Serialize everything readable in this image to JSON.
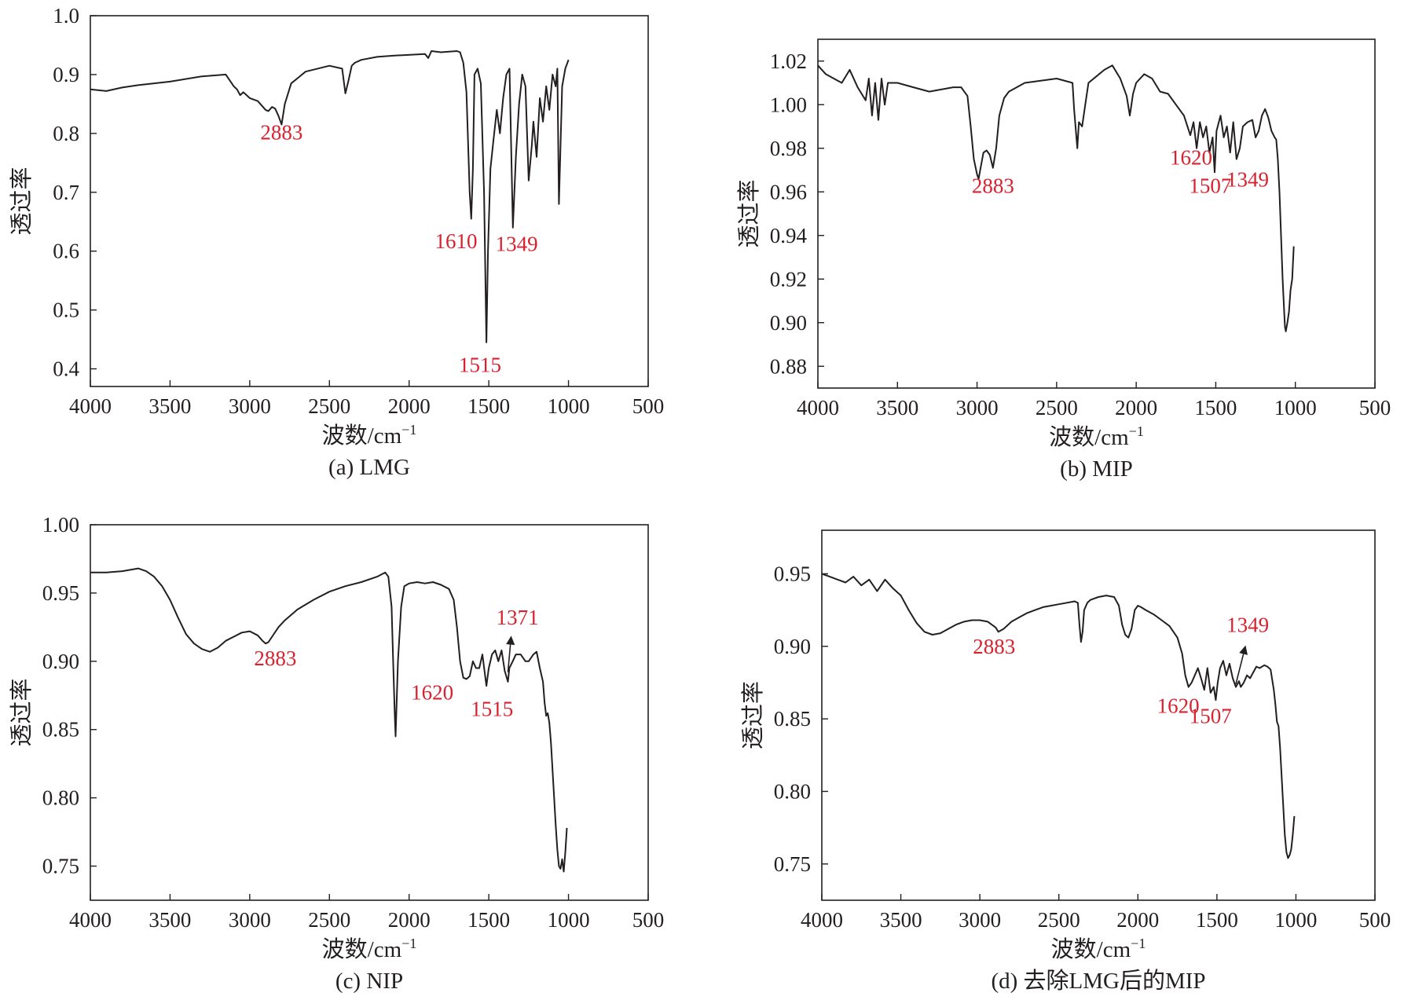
{
  "colors": {
    "ink": "#231f20",
    "annotation": "#d8222f",
    "background": "#ffffff"
  },
  "chart_data": [
    {
      "type": "line",
      "caption": "(a) LMG",
      "xlabel": "波数/cm",
      "xlabel_sup": "−1",
      "ylabel": "透过率",
      "xlim": [
        4000,
        500
      ],
      "ylim": [
        0.37,
        1.0
      ],
      "xticks": [
        4000,
        3500,
        3000,
        2500,
        2000,
        1500,
        1000,
        500
      ],
      "xtick_labels": [
        "4000",
        "3500",
        "3000",
        "2500",
        "2000",
        "1500",
        "1000",
        "500"
      ],
      "yticks": [
        0.4,
        0.5,
        0.6,
        0.7,
        0.8,
        0.9,
        1.0
      ],
      "ytick_labels": [
        "0.4",
        "0.5",
        "0.6",
        "0.7",
        "0.8",
        "0.9",
        "1.0"
      ],
      "series": [
        {
          "name": "LMG",
          "x": [
            4000,
            3900,
            3800,
            3700,
            3500,
            3300,
            3150,
            3100,
            3080,
            3060,
            3040,
            3000,
            2950,
            2900,
            2883,
            2860,
            2840,
            2820,
            2800,
            2780,
            2740,
            2650,
            2500,
            2420,
            2400,
            2380,
            2360,
            2340,
            2300,
            2200,
            2100,
            1900,
            1880,
            1860,
            1800,
            1700,
            1680,
            1660,
            1640,
            1620,
            1610,
            1600,
            1590,
            1570,
            1550,
            1530,
            1515,
            1505,
            1490,
            1470,
            1450,
            1430,
            1410,
            1390,
            1370,
            1349,
            1330,
            1310,
            1290,
            1270,
            1250,
            1230,
            1220,
            1200,
            1180,
            1160,
            1140,
            1120,
            1100,
            1080,
            1070,
            1060,
            1040,
            1020,
            1000
          ],
          "y": [
            0.875,
            0.872,
            0.878,
            0.882,
            0.888,
            0.897,
            0.9,
            0.88,
            0.875,
            0.865,
            0.87,
            0.86,
            0.855,
            0.84,
            0.838,
            0.845,
            0.842,
            0.83,
            0.815,
            0.85,
            0.885,
            0.905,
            0.915,
            0.91,
            0.868,
            0.89,
            0.915,
            0.92,
            0.925,
            0.93,
            0.932,
            0.935,
            0.928,
            0.94,
            0.938,
            0.94,
            0.938,
            0.92,
            0.87,
            0.7,
            0.655,
            0.74,
            0.9,
            0.91,
            0.885,
            0.7,
            0.445,
            0.6,
            0.74,
            0.79,
            0.84,
            0.8,
            0.86,
            0.9,
            0.91,
            0.64,
            0.76,
            0.85,
            0.9,
            0.88,
            0.72,
            0.78,
            0.82,
            0.76,
            0.86,
            0.82,
            0.88,
            0.84,
            0.9,
            0.88,
            0.91,
            0.68,
            0.88,
            0.91,
            0.925
          ]
        }
      ],
      "annotations": [
        {
          "label": "2883",
          "x": 2800,
          "y": 0.79
        },
        {
          "label": "1610",
          "x": 1705,
          "y": 0.605
        },
        {
          "label": "1349",
          "x": 1325,
          "y": 0.6
        },
        {
          "label": "1515",
          "x": 1555,
          "y": 0.395
        }
      ]
    },
    {
      "type": "line",
      "caption": "(b) MIP",
      "xlabel": "波数/cm",
      "xlabel_sup": "−1",
      "ylabel": "透过率",
      "xlim": [
        4000,
        500
      ],
      "ylim": [
        0.87,
        1.03
      ],
      "xticks": [
        4000,
        3500,
        3000,
        2500,
        2000,
        1500,
        1000,
        500
      ],
      "xtick_labels": [
        "4000",
        "3500",
        "3000",
        "2500",
        "2000",
        "1500",
        "1000",
        "500"
      ],
      "yticks": [
        0.88,
        0.9,
        0.92,
        0.94,
        0.96,
        0.98,
        1.0,
        1.02
      ],
      "ytick_labels": [
        "0.88",
        "0.90",
        "0.92",
        "0.94",
        "0.96",
        "0.98",
        "1.00",
        "1.02"
      ],
      "series": [
        {
          "name": "MIP",
          "x": [
            4000,
            3950,
            3900,
            3850,
            3800,
            3750,
            3700,
            3680,
            3660,
            3640,
            3620,
            3600,
            3580,
            3560,
            3500,
            3400,
            3300,
            3150,
            3100,
            3060,
            3040,
            3020,
            3000,
            2990,
            2980,
            2960,
            2940,
            2920,
            2900,
            2880,
            2860,
            2830,
            2800,
            2700,
            2500,
            2400,
            2390,
            2370,
            2360,
            2340,
            2320,
            2300,
            2250,
            2200,
            2150,
            2100,
            2060,
            2040,
            2030,
            2020,
            2000,
            1950,
            1900,
            1850,
            1800,
            1750,
            1700,
            1660,
            1640,
            1620,
            1600,
            1580,
            1560,
            1540,
            1520,
            1507,
            1495,
            1470,
            1450,
            1430,
            1410,
            1390,
            1370,
            1349,
            1330,
            1300,
            1270,
            1250,
            1230,
            1210,
            1190,
            1170,
            1150,
            1130,
            1120,
            1110,
            1100,
            1090,
            1080,
            1070,
            1065,
            1060,
            1050,
            1040,
            1030,
            1020,
            1010
          ],
          "y": [
            1.018,
            1.014,
            1.012,
            1.01,
            1.016,
            1.008,
            1.002,
            1.012,
            0.995,
            1.01,
            0.993,
            1.012,
            1.0,
            1.01,
            1.01,
            1.008,
            1.006,
            1.008,
            1.008,
            1.004,
            0.99,
            0.975,
            0.968,
            0.966,
            0.97,
            0.978,
            0.979,
            0.977,
            0.971,
            0.98,
            0.995,
            1.003,
            1.006,
            1.01,
            1.012,
            1.01,
            0.998,
            0.98,
            0.992,
            0.99,
            1.0,
            1.01,
            1.013,
            1.016,
            1.018,
            1.012,
            1.004,
            0.995,
            1.0,
            1.005,
            1.01,
            1.014,
            1.012,
            1.006,
            1.005,
            1.0,
            0.995,
            0.986,
            0.992,
            0.98,
            0.992,
            0.985,
            0.99,
            0.978,
            0.985,
            0.969,
            0.988,
            0.995,
            0.985,
            0.99,
            0.978,
            0.992,
            0.975,
            0.98,
            0.99,
            0.992,
            0.993,
            0.985,
            0.988,
            0.995,
            0.998,
            0.994,
            0.988,
            0.985,
            0.984,
            0.975,
            0.96,
            0.94,
            0.92,
            0.905,
            0.898,
            0.896,
            0.9,
            0.905,
            0.915,
            0.92,
            0.935
          ]
        }
      ],
      "annotations": [
        {
          "label": "2883",
          "x": 2900,
          "y": 0.9595
        },
        {
          "label": "1620",
          "x": 1655,
          "y": 0.9725
        },
        {
          "label": "1507",
          "x": 1535,
          "y": 0.9595
        },
        {
          "label": "1349",
          "x": 1300,
          "y": 0.9625
        }
      ]
    },
    {
      "type": "line",
      "caption": "(c) NIP",
      "xlabel": "波数/cm",
      "xlabel_sup": "−1",
      "ylabel": "透过率",
      "xlim": [
        4000,
        500
      ],
      "ylim": [
        0.725,
        1.0
      ],
      "xticks": [
        4000,
        3500,
        3000,
        2500,
        2000,
        1500,
        1000,
        500
      ],
      "xtick_labels": [
        "4000",
        "3500",
        "3000",
        "2500",
        "2000",
        "1500",
        "1000",
        "500"
      ],
      "yticks": [
        0.75,
        0.8,
        0.85,
        0.9,
        0.95,
        1.0
      ],
      "ytick_labels": [
        "0.75",
        "0.80",
        "0.85",
        "0.90",
        "0.95",
        "1.00"
      ],
      "series": [
        {
          "name": "NIP",
          "x": [
            4000,
            3900,
            3800,
            3700,
            3650,
            3600,
            3550,
            3500,
            3450,
            3400,
            3350,
            3300,
            3250,
            3200,
            3150,
            3100,
            3050,
            3000,
            2950,
            2920,
            2900,
            2883,
            2860,
            2820,
            2780,
            2700,
            2600,
            2500,
            2400,
            2300,
            2200,
            2150,
            2130,
            2110,
            2100,
            2090,
            2085,
            2070,
            2050,
            2030,
            2000,
            1950,
            1900,
            1850,
            1800,
            1750,
            1720,
            1700,
            1680,
            1660,
            1640,
            1620,
            1600,
            1580,
            1560,
            1540,
            1515,
            1500,
            1480,
            1460,
            1440,
            1420,
            1400,
            1380,
            1371,
            1350,
            1330,
            1300,
            1270,
            1250,
            1220,
            1200,
            1180,
            1160,
            1150,
            1140,
            1130,
            1120,
            1110,
            1100,
            1090,
            1080,
            1070,
            1060,
            1050,
            1040,
            1030,
            1020,
            1010
          ],
          "y": [
            0.965,
            0.965,
            0.966,
            0.968,
            0.966,
            0.962,
            0.955,
            0.945,
            0.932,
            0.92,
            0.913,
            0.909,
            0.907,
            0.91,
            0.915,
            0.918,
            0.921,
            0.922,
            0.919,
            0.915,
            0.913,
            0.914,
            0.918,
            0.925,
            0.93,
            0.938,
            0.945,
            0.951,
            0.955,
            0.958,
            0.962,
            0.965,
            0.962,
            0.94,
            0.9,
            0.86,
            0.845,
            0.9,
            0.94,
            0.955,
            0.957,
            0.958,
            0.957,
            0.958,
            0.956,
            0.953,
            0.945,
            0.925,
            0.9,
            0.888,
            0.887,
            0.889,
            0.9,
            0.895,
            0.895,
            0.905,
            0.882,
            0.895,
            0.905,
            0.908,
            0.9,
            0.908,
            0.893,
            0.885,
            0.895,
            0.9,
            0.905,
            0.905,
            0.9,
            0.9,
            0.905,
            0.907,
            0.895,
            0.885,
            0.87,
            0.86,
            0.862,
            0.855,
            0.84,
            0.82,
            0.8,
            0.78,
            0.762,
            0.75,
            0.748,
            0.755,
            0.746,
            0.76,
            0.778
          ]
        }
      ],
      "annotations": [
        {
          "label": "2883",
          "x": 2840,
          "y": 0.897
        },
        {
          "label": "1620",
          "x": 1855,
          "y": 0.872
        },
        {
          "label": "1515",
          "x": 1480,
          "y": 0.86
        },
        {
          "label": "1371",
          "x": 1320,
          "y": 0.927
        }
      ],
      "arrow": {
        "from": [
          1380,
          0.892
        ],
        "to": [
          1360,
          0.918
        ]
      }
    },
    {
      "type": "line",
      "caption": "(d) 去除LMG后的MIP",
      "xlabel": "波数/cm",
      "xlabel_sup": "−1",
      "ylabel": "透过率",
      "xlim": [
        4000,
        500
      ],
      "ylim": [
        0.725,
        0.98
      ],
      "xticks": [
        4000,
        3500,
        3000,
        2500,
        2000,
        1500,
        1000,
        500
      ],
      "xtick_labels": [
        "4000",
        "3500",
        "3000",
        "2500",
        "2000",
        "1500",
        "1000",
        "500"
      ],
      "yticks": [
        0.75,
        0.8,
        0.85,
        0.9,
        0.95
      ],
      "ytick_labels": [
        "0.75",
        "0.80",
        "0.85",
        "0.90",
        "0.95"
      ],
      "series": [
        {
          "name": "去除LMG后的MIP",
          "x": [
            4000,
            3950,
            3900,
            3850,
            3800,
            3750,
            3700,
            3650,
            3600,
            3550,
            3500,
            3450,
            3400,
            3350,
            3300,
            3250,
            3200,
            3150,
            3100,
            3050,
            3000,
            2950,
            2900,
            2883,
            2850,
            2800,
            2750,
            2700,
            2650,
            2600,
            2500,
            2400,
            2380,
            2370,
            2360,
            2350,
            2340,
            2320,
            2300,
            2250,
            2200,
            2150,
            2120,
            2100,
            2080,
            2060,
            2040,
            2020,
            2000,
            1980,
            1950,
            1900,
            1850,
            1800,
            1750,
            1720,
            1700,
            1680,
            1660,
            1640,
            1620,
            1600,
            1580,
            1560,
            1540,
            1520,
            1507,
            1495,
            1480,
            1460,
            1440,
            1420,
            1400,
            1380,
            1360,
            1349,
            1330,
            1310,
            1290,
            1270,
            1250,
            1230,
            1200,
            1180,
            1160,
            1140,
            1130,
            1120,
            1110,
            1100,
            1090,
            1080,
            1070,
            1060,
            1050,
            1040,
            1030,
            1020,
            1010
          ],
          "y": [
            0.95,
            0.948,
            0.946,
            0.944,
            0.948,
            0.942,
            0.946,
            0.938,
            0.946,
            0.94,
            0.935,
            0.925,
            0.916,
            0.91,
            0.908,
            0.909,
            0.912,
            0.915,
            0.917,
            0.918,
            0.918,
            0.917,
            0.913,
            0.91,
            0.912,
            0.917,
            0.92,
            0.923,
            0.925,
            0.927,
            0.929,
            0.931,
            0.93,
            0.915,
            0.903,
            0.91,
            0.925,
            0.93,
            0.932,
            0.934,
            0.935,
            0.934,
            0.928,
            0.915,
            0.908,
            0.906,
            0.912,
            0.925,
            0.928,
            0.927,
            0.925,
            0.922,
            0.918,
            0.914,
            0.906,
            0.895,
            0.88,
            0.872,
            0.875,
            0.88,
            0.885,
            0.878,
            0.87,
            0.885,
            0.868,
            0.872,
            0.863,
            0.875,
            0.885,
            0.89,
            0.88,
            0.888,
            0.878,
            0.872,
            0.876,
            0.872,
            0.875,
            0.88,
            0.878,
            0.882,
            0.886,
            0.885,
            0.887,
            0.886,
            0.884,
            0.87,
            0.86,
            0.848,
            0.845,
            0.83,
            0.81,
            0.79,
            0.77,
            0.758,
            0.754,
            0.756,
            0.76,
            0.77,
            0.783
          ]
        }
      ],
      "annotations": [
        {
          "label": "2883",
          "x": 2910,
          "y": 0.895
        },
        {
          "label": "1620",
          "x": 1745,
          "y": 0.854
        },
        {
          "label": "1507",
          "x": 1540,
          "y": 0.847
        },
        {
          "label": "1349",
          "x": 1305,
          "y": 0.91
        }
      ],
      "arrow": {
        "from": [
          1380,
          0.874
        ],
        "to": [
          1320,
          0.9
        ]
      }
    }
  ]
}
